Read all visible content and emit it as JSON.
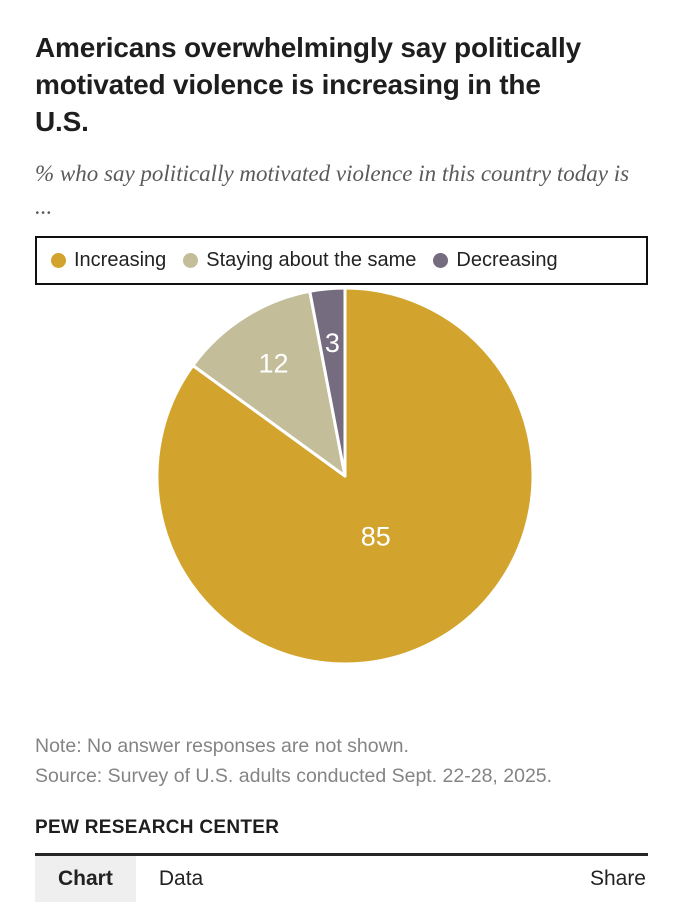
{
  "chart_data": {
    "type": "pie",
    "title": "Americans overwhelmingly say politically motivated violence is increasing in the U.S.",
    "subtitle": "% who say politically motivated violence in this country today is ...",
    "categories": [
      "Increasing",
      "Staying about the same",
      "Decreasing"
    ],
    "values": [
      85,
      12,
      3
    ],
    "colors": [
      "#d2a42d",
      "#c3bd9a",
      "#756c80"
    ],
    "value_label_color": "#ffffff",
    "slice_separator_color": "#ffffff",
    "legend_position": "top",
    "start_position": "12-oclock",
    "direction": "clockwise"
  },
  "notes": {
    "note": "Note: No answer responses are not shown.",
    "source": "Source: Survey of U.S. adults conducted Sept. 22-28, 2025."
  },
  "branding": {
    "name": "PEW RESEARCH CENTER"
  },
  "tabs": {
    "chart": "Chart",
    "data": "Data",
    "share": "Share",
    "active": "Chart"
  }
}
